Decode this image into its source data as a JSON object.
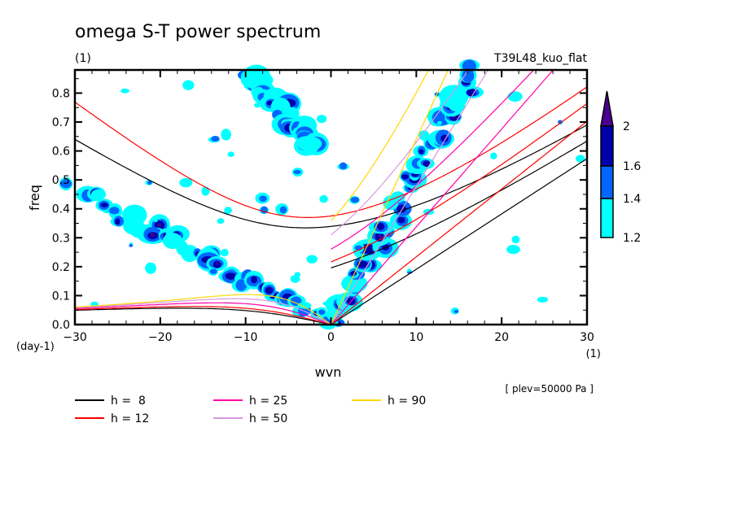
{
  "chart_data": {
    "type": "heatmap",
    "title": "omega S-T power spectrum",
    "subtitle_units": "(1)",
    "run_label": "T39L48_kuo_flat",
    "xlabel": "wvn",
    "x_units": "(1)",
    "ylabel": "freq",
    "y_units": "(day-1)",
    "xlim": [
      -30,
      30
    ],
    "ylim": [
      0.0,
      0.88
    ],
    "x_ticks": [
      -30,
      -20,
      -10,
      0,
      10,
      20,
      30
    ],
    "x_tick_labels": [
      "-30",
      "-20",
      "-10",
      "0",
      "10",
      "20",
      "30"
    ],
    "y_ticks": [
      0.0,
      0.1,
      0.2,
      0.3,
      0.4,
      0.5,
      0.6,
      0.7,
      0.8
    ],
    "y_tick_labels": [
      "0.0",
      "0.1",
      "0.2",
      "0.3",
      "0.4",
      "0.5",
      "0.6",
      "0.7",
      "0.8"
    ],
    "annotation": "[ plev=50000 Pa ]",
    "colorbar": {
      "levels": [
        1.2,
        1.4,
        1.6,
        2
      ],
      "labels": [
        "1.2",
        "1.4",
        "1.6",
        "2"
      ],
      "colors": [
        "#00ffff",
        "#0066ff",
        "#0000aa",
        "#4b0090"
      ],
      "extend": "max"
    },
    "dispersion_curves": [
      {
        "name": "h =  8",
        "h": 8,
        "color": "#000000"
      },
      {
        "name": "h = 12",
        "h": 12,
        "color": "#ff0000"
      },
      {
        "name": "h = 25",
        "h": 25,
        "color": "#ff00aa"
      },
      {
        "name": "h = 50",
        "h": 50,
        "color": "#d898e0"
      },
      {
        "name": "h = 90",
        "h": 90,
        "color": "#ffd700"
      }
    ],
    "spectral_features": [
      {
        "name": "westward band",
        "from": [
          -30,
          0.47
        ],
        "to": [
          0,
          0.0
        ],
        "max_level": 2
      },
      {
        "name": "eastward band",
        "from": [
          0,
          0.0
        ],
        "to": [
          17,
          0.88
        ],
        "max_level": 2
      },
      {
        "name": "upper cluster",
        "from": [
          -10,
          0.88
        ],
        "to": [
          -2,
          0.62
        ],
        "max_level": 1.6
      }
    ]
  }
}
